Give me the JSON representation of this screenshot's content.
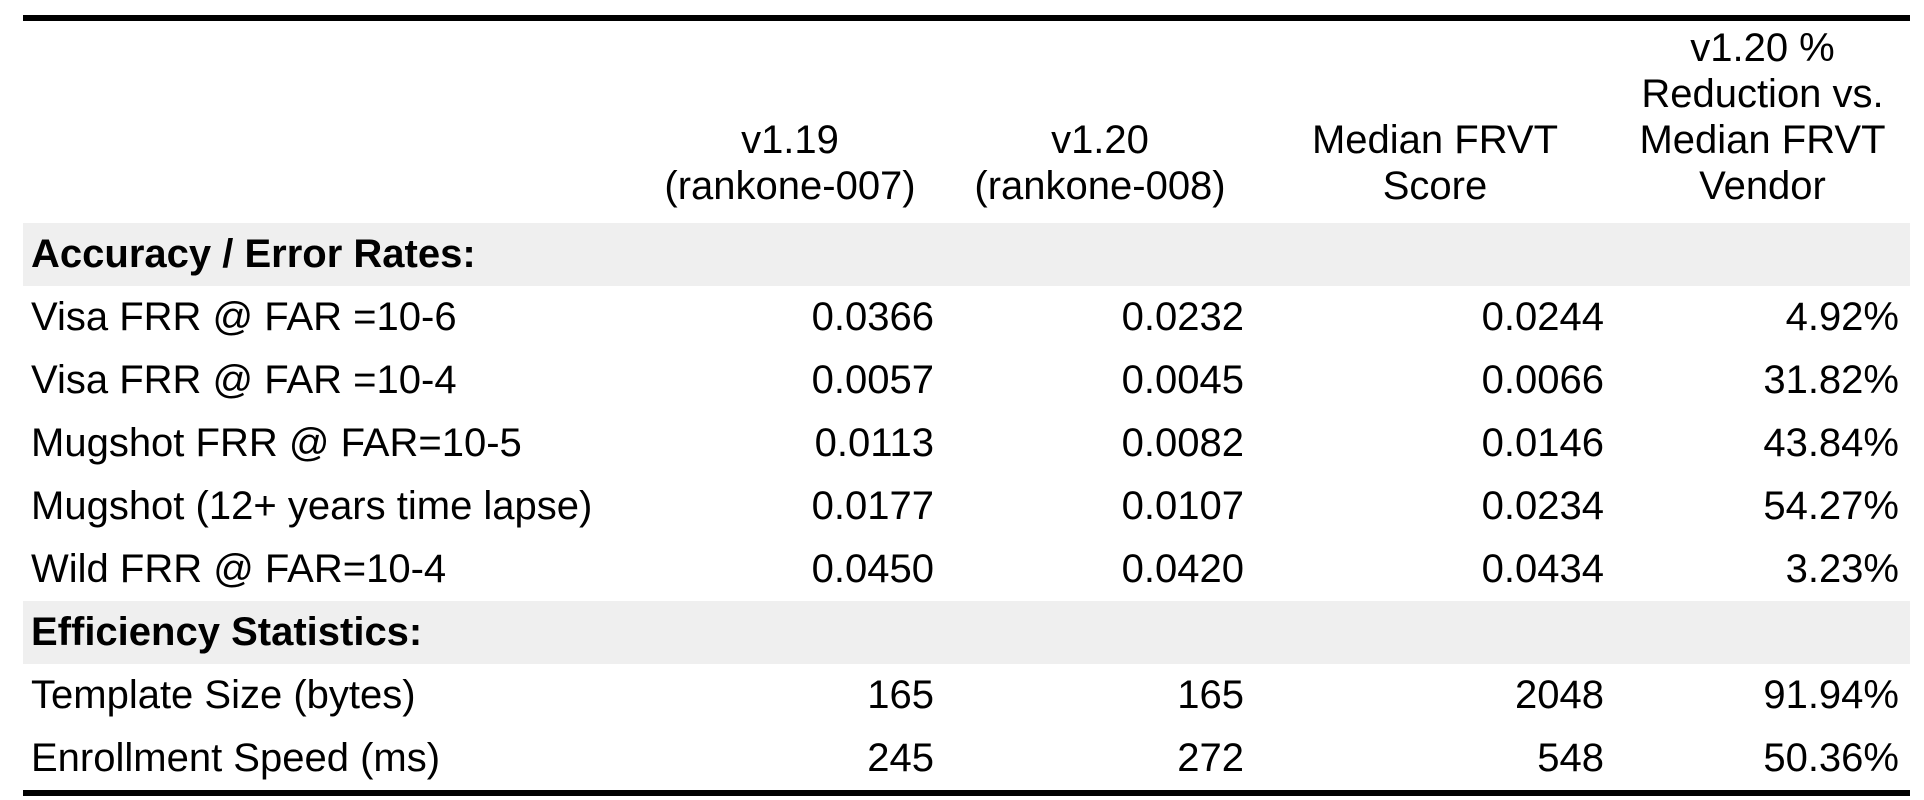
{
  "colors": {
    "page_background": "#ffffff",
    "text": "#000000",
    "rule": "#000000",
    "section_band": "#efefef"
  },
  "table": {
    "header": {
      "col1": "",
      "col2": "v1.19\n(rankone-007)",
      "col3": "v1.20\n(rankone-008)",
      "col4": "Median FRVT\nScore",
      "col5": "v1.20 %\nReduction vs.\nMedian FRVT\nVendor"
    },
    "sections": [
      {
        "title": "Accuracy / Error Rates:",
        "rows": [
          {
            "label": "Visa FRR @ FAR =10-6",
            "values": [
              "0.0366",
              "0.0232",
              "0.0244",
              "4.92%"
            ]
          },
          {
            "label": "Visa FRR @ FAR =10-4",
            "values": [
              "0.0057",
              "0.0045",
              "0.0066",
              "31.82%"
            ]
          },
          {
            "label": "Mugshot FRR @ FAR=10-5",
            "values": [
              "0.0113",
              "0.0082",
              "0.0146",
              "43.84%"
            ]
          },
          {
            "label": "Mugshot (12+ years time lapse)",
            "values": [
              "0.0177",
              "0.0107",
              "0.0234",
              "54.27%"
            ]
          },
          {
            "label": "Wild FRR @ FAR=10-4",
            "values": [
              "0.0450",
              "0.0420",
              "0.0434",
              "3.23%"
            ]
          }
        ]
      },
      {
        "title": "Efficiency Statistics:",
        "rows": [
          {
            "label": "Template Size (bytes)",
            "values": [
              "165",
              "165",
              "2048",
              "91.94%"
            ]
          },
          {
            "label": "Enrollment Speed (ms)",
            "values": [
              "245",
              "272",
              "548",
              "50.36%"
            ]
          }
        ]
      }
    ]
  }
}
